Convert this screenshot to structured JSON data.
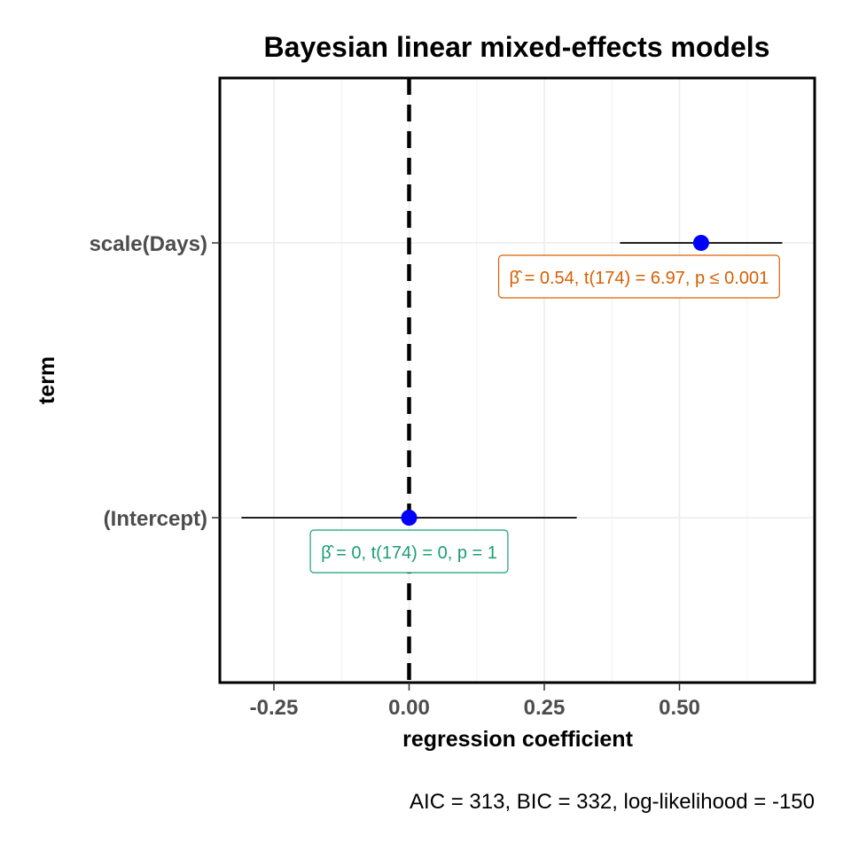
{
  "chart_data": {
    "type": "scatter",
    "title": "Bayesian linear mixed-effects models",
    "xlabel": "regression coefficient",
    "ylabel": "term",
    "caption": "AIC = 313, BIC = 332, log-likelihood = -150",
    "xlim": [
      -0.35,
      0.75
    ],
    "x_ticks": [
      -0.25,
      0.0,
      0.25,
      0.5
    ],
    "x_tick_labels": [
      "-0.25",
      "0.00",
      "0.25",
      "0.50"
    ],
    "reference_line": 0,
    "grid": true,
    "point_color": "#0000ff",
    "terms": [
      {
        "term": "(Intercept)",
        "estimate": 0,
        "conf_low": -0.31,
        "conf_high": 0.31,
        "label": "β̂ = 0,  t(174) = 0,  p = 1",
        "label_color": "#1b9e77"
      },
      {
        "term": "scale(Days)",
        "estimate": 0.54,
        "conf_low": 0.39,
        "conf_high": 0.69,
        "label": "β̂ = 0.54,  t(174) = 6.97,  p ≤ 0.001",
        "label_color": "#d95f02"
      }
    ]
  }
}
